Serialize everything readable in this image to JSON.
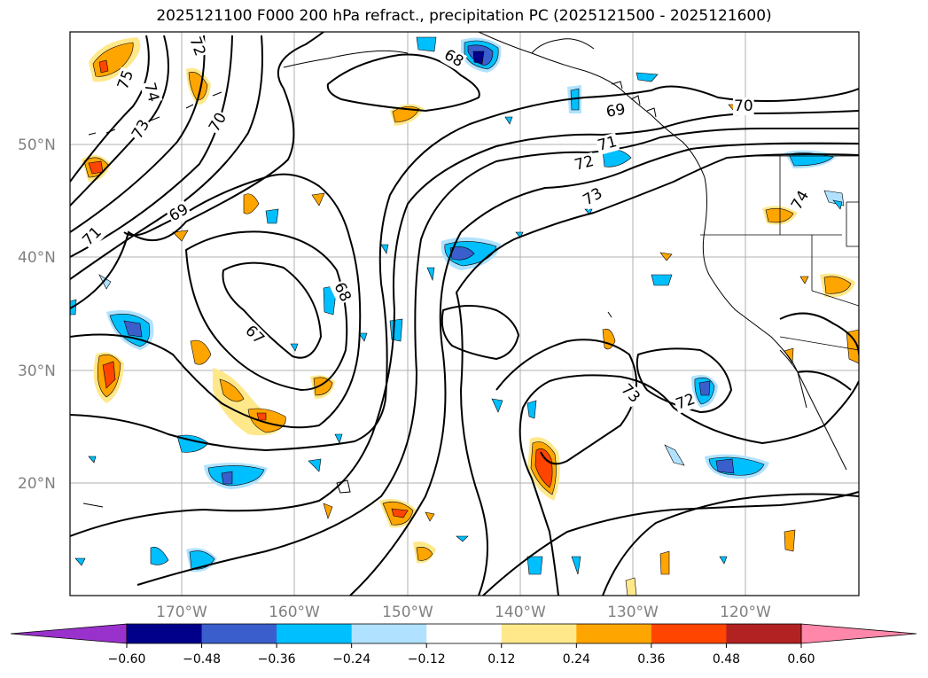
{
  "title": "2025121100 F000 200 hPa refract., precipitation PC (2025121500 - 2025121600)",
  "map": {
    "lat_labels": [
      "50°N",
      "40°N",
      "30°N",
      "20°N"
    ],
    "lon_labels": [
      "170°W",
      "160°W",
      "150°W",
      "140°W",
      "130°W",
      "120°W"
    ],
    "contour_labels": [
      "75",
      "74",
      "73",
      "72",
      "70",
      "69",
      "71",
      "68",
      "67",
      "68",
      "69",
      "70",
      "71",
      "72",
      "73",
      "74",
      "73",
      "72"
    ],
    "colors": {
      "contour": "#000000",
      "grid": "#b0b0b0",
      "coast": "#000000"
    }
  },
  "colorbar": {
    "ticks": [
      "−0.60",
      "−0.48",
      "−0.36",
      "−0.24",
      "−0.12",
      "0.12",
      "0.24",
      "0.36",
      "0.48",
      "0.60"
    ],
    "colors": [
      "#9932cc",
      "#00008b",
      "#3a5fcd",
      "#00bfff",
      "#b0e2ff",
      "#ffffff",
      "#ffe88a",
      "#ffa500",
      "#ff4500",
      "#b22222",
      "#ff88aa"
    ]
  }
}
